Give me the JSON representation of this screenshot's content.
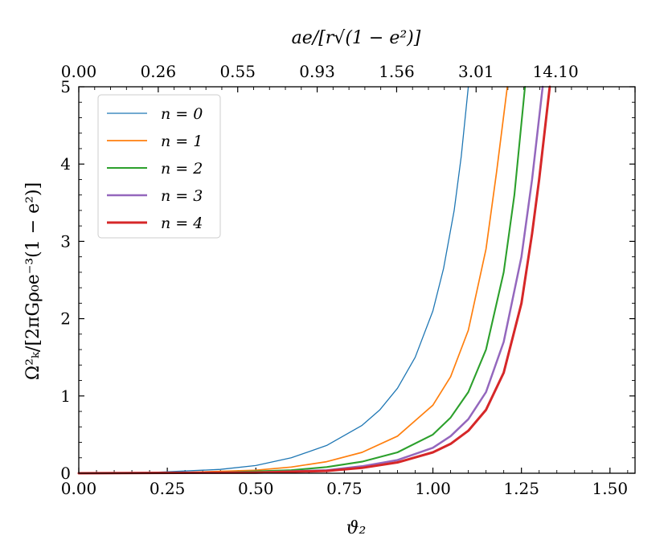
{
  "chart_data": {
    "type": "line",
    "xlabel": "ϑ₂",
    "ylabel": "Ω²ₖ/[2πGρ₀e⁻³(1 − e²)]",
    "top_xlabel": "ae/[r√(1 − e²)]",
    "xlim": [
      0.0,
      1.5708
    ],
    "ylim": [
      0,
      5
    ],
    "x_ticks": [
      0.0,
      0.25,
      0.5,
      0.75,
      1.0,
      1.25,
      1.5
    ],
    "x_tick_labels": [
      "0.00",
      "0.25",
      "0.50",
      "0.75",
      "1.00",
      "1.25",
      "1.50"
    ],
    "y_ticks": [
      0,
      1,
      2,
      3,
      4,
      5
    ],
    "y_tick_labels": [
      "0",
      "1",
      "2",
      "3",
      "4",
      "5"
    ],
    "top_ticks": [
      0.0,
      0.2244,
      0.4488,
      0.6732,
      0.8976,
      1.122,
      1.3464,
      1.5708
    ],
    "top_tick_labels": [
      "0.00",
      "0.26",
      "0.55",
      "0.93",
      "1.56",
      "3.01",
      "14.10"
    ],
    "legend_position": "top-left",
    "grid": false,
    "series": [
      {
        "name": "n = 0",
        "color": "#1f77b4",
        "width": 1.3,
        "x": [
          0,
          0.2,
          0.4,
          0.5,
          0.6,
          0.7,
          0.8,
          0.85,
          0.9,
          0.95,
          1.0,
          1.03,
          1.06,
          1.08,
          1.1
        ],
        "y": [
          0,
          0.008,
          0.05,
          0.1,
          0.2,
          0.36,
          0.62,
          0.82,
          1.1,
          1.5,
          2.1,
          2.65,
          3.4,
          4.1,
          5.0
        ]
      },
      {
        "name": "n = 1",
        "color": "#ff7f0e",
        "width": 1.7,
        "x": [
          0,
          0.3,
          0.5,
          0.6,
          0.7,
          0.8,
          0.9,
          1.0,
          1.05,
          1.1,
          1.15,
          1.18,
          1.21
        ],
        "y": [
          0,
          0.01,
          0.04,
          0.08,
          0.15,
          0.27,
          0.48,
          0.88,
          1.25,
          1.85,
          2.9,
          3.9,
          5.0
        ]
      },
      {
        "name": "n = 2",
        "color": "#2ca02c",
        "width": 2.1,
        "x": [
          0,
          0.4,
          0.6,
          0.7,
          0.8,
          0.9,
          1.0,
          1.05,
          1.1,
          1.15,
          1.2,
          1.23,
          1.26
        ],
        "y": [
          0,
          0.01,
          0.04,
          0.08,
          0.15,
          0.27,
          0.5,
          0.72,
          1.05,
          1.6,
          2.6,
          3.6,
          5.0
        ]
      },
      {
        "name": "n = 3",
        "color": "#9467bd",
        "width": 2.5,
        "x": [
          0,
          0.5,
          0.7,
          0.8,
          0.9,
          1.0,
          1.05,
          1.1,
          1.15,
          1.2,
          1.25,
          1.28,
          1.31
        ],
        "y": [
          0,
          0.01,
          0.04,
          0.09,
          0.17,
          0.33,
          0.48,
          0.7,
          1.05,
          1.7,
          2.8,
          3.8,
          5.0
        ]
      },
      {
        "name": "n = 4",
        "color": "#d62728",
        "width": 3.0,
        "x": [
          0,
          0.5,
          0.7,
          0.8,
          0.9,
          1.0,
          1.05,
          1.1,
          1.15,
          1.2,
          1.25,
          1.28,
          1.3,
          1.33
        ],
        "y": [
          0,
          0.008,
          0.03,
          0.07,
          0.14,
          0.27,
          0.38,
          0.55,
          0.82,
          1.3,
          2.2,
          3.1,
          3.8,
          5.0
        ]
      }
    ]
  }
}
